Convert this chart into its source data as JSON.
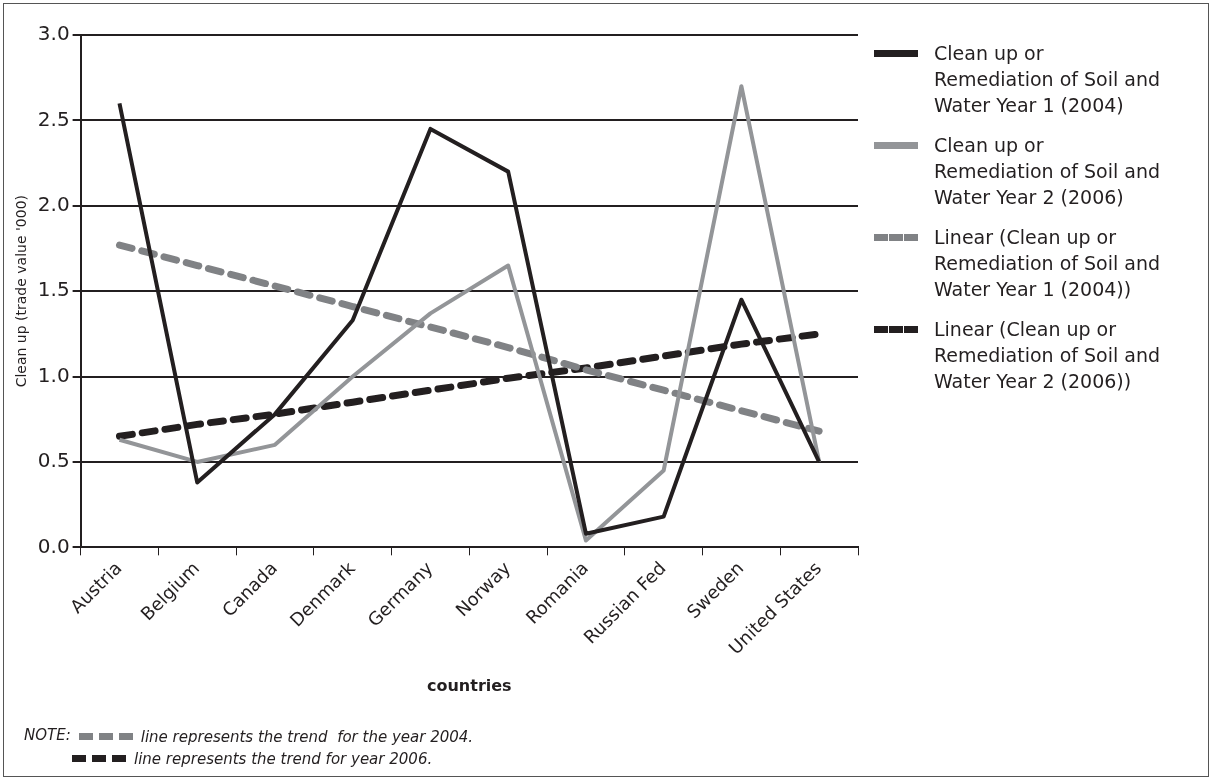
{
  "chart_data": {
    "type": "line",
    "xlabel": "countries",
    "ylabel": "Clean up (trade value '000)",
    "categories": [
      "Austria",
      "Belgium",
      "Canada",
      "Denmark",
      "Germany",
      "Norway",
      "Romania",
      "Russian Fed",
      "Sweden",
      "United States"
    ],
    "series": [
      {
        "name": "Clean up or Remediation of Soil and Water Year 1 (2004)",
        "color": "#231f20",
        "values": [
          2.6,
          0.38,
          0.78,
          1.33,
          2.45,
          2.2,
          0.08,
          0.18,
          1.45,
          0.5
        ]
      },
      {
        "name": "Clean up or Remediation of Soil and Water Year 2 (2006)",
        "color": "#939598",
        "values": [
          0.63,
          0.5,
          0.6,
          1.0,
          1.37,
          1.65,
          0.04,
          0.45,
          2.7,
          0.5
        ]
      },
      {
        "name": "Linear (Clean up or Remediation of Soil and Water Year 1 (2004))",
        "color": "#808285",
        "line_style": "dashed",
        "values": [
          1.77,
          1.65,
          1.53,
          1.41,
          1.29,
          1.17,
          1.04,
          0.92,
          0.8,
          0.68
        ]
      },
      {
        "name": "Linear (Clean up or Remediation of Soil and Water Year 2 (2006))",
        "color": "#231f20",
        "line_style": "dashed",
        "values": [
          0.65,
          0.72,
          0.78,
          0.85,
          0.92,
          0.99,
          1.05,
          1.12,
          1.19,
          1.25
        ]
      }
    ],
    "ylim": [
      0,
      3
    ],
    "yticks": [
      {
        "value": 0,
        "label": "0.0"
      },
      {
        "value": 0.5,
        "label": "0.5"
      },
      {
        "value": 1,
        "label": "1.0"
      },
      {
        "value": 1.5,
        "label": "1.5"
      },
      {
        "value": 2,
        "label": "2.0"
      },
      {
        "value": 2.5,
        "label": "2.5"
      },
      {
        "value": 3,
        "label": "3.0"
      }
    ],
    "grid": "y",
    "legend": "right",
    "marker": "none",
    "annotations": [
      "NOTE:",
      "line represents the trend  for the year 2004.",
      "line represents the trend for year 2006."
    ]
  }
}
